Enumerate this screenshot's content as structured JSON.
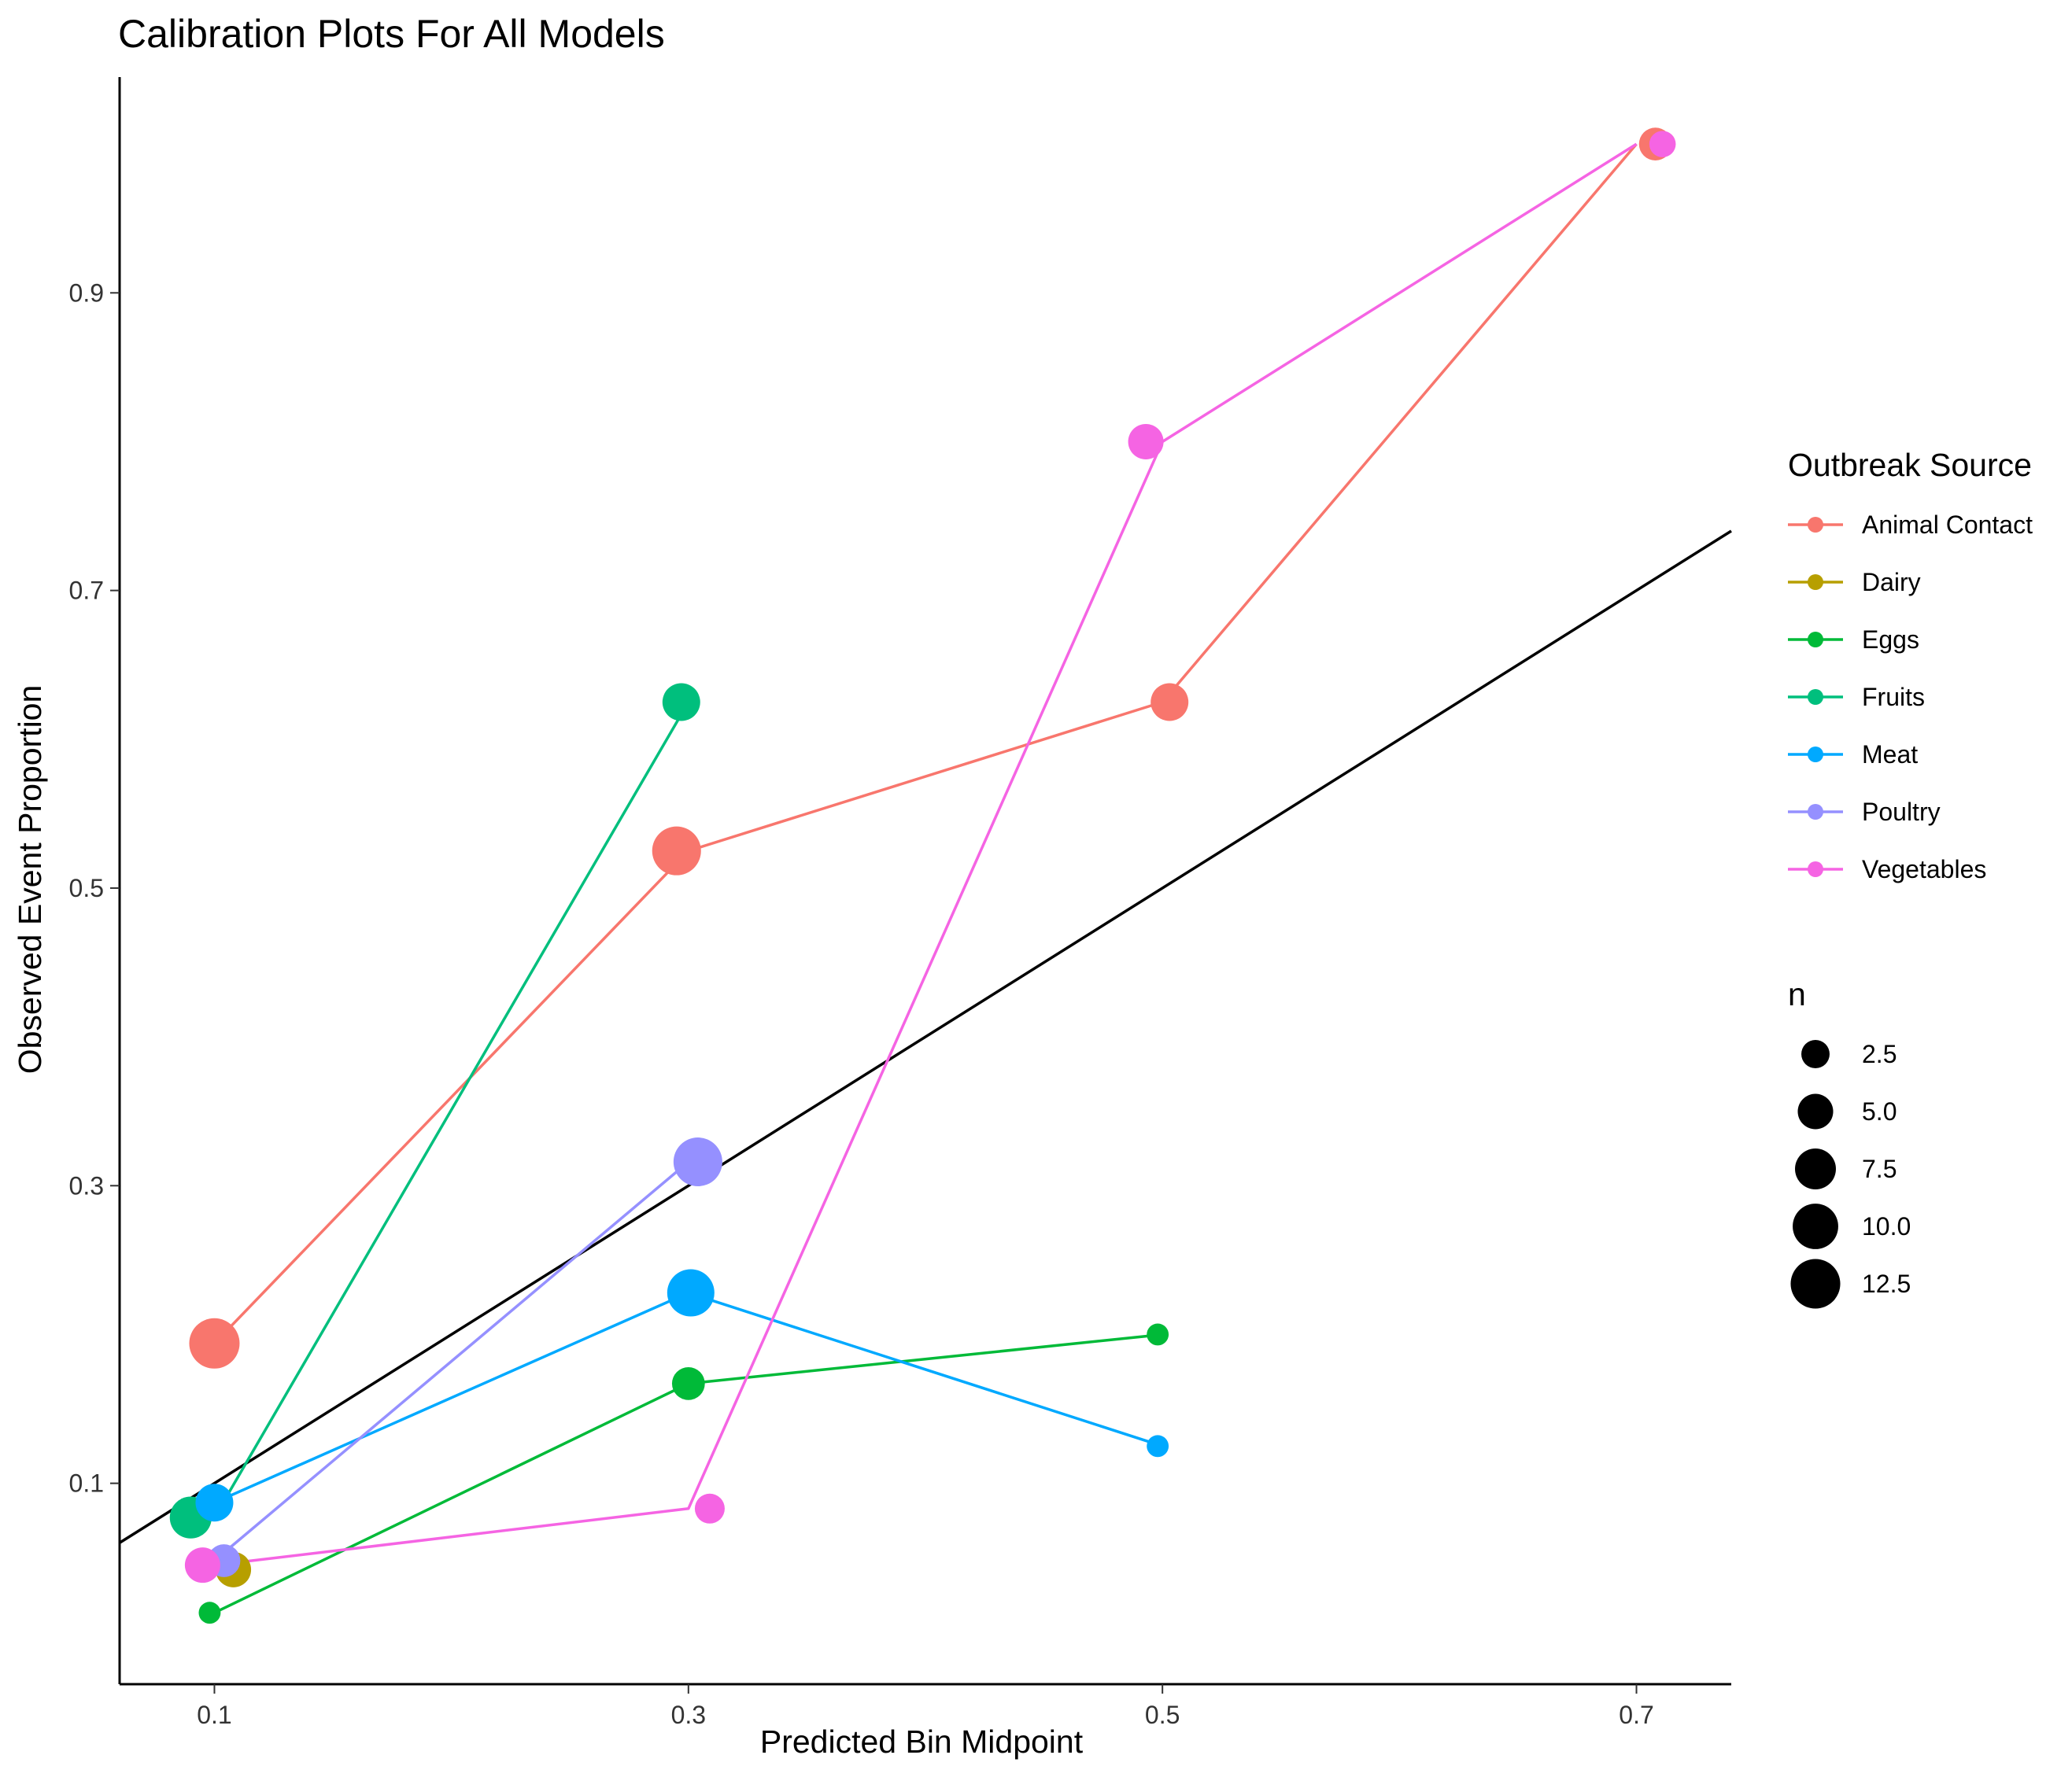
{
  "chart_data": {
    "type": "line",
    "title": "Calibration Plots For All Models",
    "xlabel": "Predicted Bin Midpoint",
    "ylabel": "Observed Event Proportion",
    "xlim": [
      0.06,
      0.74
    ],
    "ylim": [
      -0.035,
      1.045
    ],
    "xticks": [
      {
        "value": 0.1,
        "label": "0.1"
      },
      {
        "value": 0.3,
        "label": "0.3"
      },
      {
        "value": 0.5,
        "label": "0.5"
      },
      {
        "value": 0.7,
        "label": "0.7"
      }
    ],
    "yticks": [
      {
        "value": 0.1,
        "label": "0.1"
      },
      {
        "value": 0.3,
        "label": "0.3"
      },
      {
        "value": 0.5,
        "label": "0.5"
      },
      {
        "value": 0.7,
        "label": "0.7"
      },
      {
        "value": 0.9,
        "label": "0.9"
      }
    ],
    "grid": false,
    "reference_line": {
      "slope": 1,
      "intercept": 0,
      "color": "#000000"
    },
    "legend_color": {
      "title": "Outbreak Source",
      "placement": "right"
    },
    "legend_size": {
      "title": "n",
      "placement": "right",
      "entries": [
        {
          "value": 2.5,
          "label": "2.5"
        },
        {
          "value": 5.0,
          "label": "5.0"
        },
        {
          "value": 7.5,
          "label": "7.5"
        },
        {
          "value": 10.0,
          "label": "10.0"
        },
        {
          "value": 12.5,
          "label": "12.5"
        }
      ]
    },
    "series": [
      {
        "name": "Animal Contact",
        "color": "#F8766D",
        "line": [
          [
            0.1,
            0.194
          ],
          [
            0.3,
            0.525
          ],
          [
            0.5,
            0.625
          ],
          [
            0.7,
            1.0
          ]
        ],
        "points": [
          [
            0.1,
            0.194,
            13
          ],
          [
            0.295,
            0.525,
            12
          ],
          [
            0.503,
            0.625,
            6
          ],
          [
            0.708,
            1.0,
            4
          ]
        ]
      },
      {
        "name": "Dairy",
        "color": "#B79F00",
        "line": [],
        "points": [
          [
            0.108,
            0.042,
            5
          ]
        ]
      },
      {
        "name": "Eggs",
        "color": "#00BA38",
        "line": [
          [
            0.1,
            0.013
          ],
          [
            0.3,
            0.167
          ],
          [
            0.5,
            0.2
          ]
        ],
        "points": [
          [
            0.098,
            0.013,
            1
          ],
          [
            0.3,
            0.167,
            4
          ],
          [
            0.498,
            0.2,
            1
          ]
        ]
      },
      {
        "name": "Fruits",
        "color": "#00BF7D",
        "line": [
          [
            0.1,
            0.077
          ],
          [
            0.3,
            0.625
          ]
        ],
        "points": [
          [
            0.09,
            0.077,
            8
          ],
          [
            0.297,
            0.625,
            6
          ]
        ]
      },
      {
        "name": "Meat",
        "color": "#00A9FF",
        "line": [
          [
            0.1,
            0.087
          ],
          [
            0.3,
            0.228
          ],
          [
            0.5,
            0.125
          ]
        ],
        "points": [
          [
            0.1,
            0.087,
            6
          ],
          [
            0.301,
            0.228,
            11
          ],
          [
            0.498,
            0.125,
            1
          ]
        ]
      },
      {
        "name": "Poultry",
        "color": "#9590FF",
        "line": [
          [
            0.1,
            0.048
          ],
          [
            0.3,
            0.316
          ]
        ],
        "points": [
          [
            0.104,
            0.048,
            4
          ],
          [
            0.304,
            0.316,
            12
          ]
        ]
      },
      {
        "name": "Vegetables",
        "color": "#F564E3",
        "line": [
          [
            0.1,
            0.045
          ],
          [
            0.3,
            0.083
          ],
          [
            0.5,
            0.8
          ],
          [
            0.7,
            1.0
          ]
        ],
        "points": [
          [
            0.095,
            0.045,
            5
          ],
          [
            0.309,
            0.083,
            3
          ],
          [
            0.493,
            0.8,
            5
          ],
          [
            0.711,
            1.0,
            2
          ]
        ]
      }
    ]
  }
}
